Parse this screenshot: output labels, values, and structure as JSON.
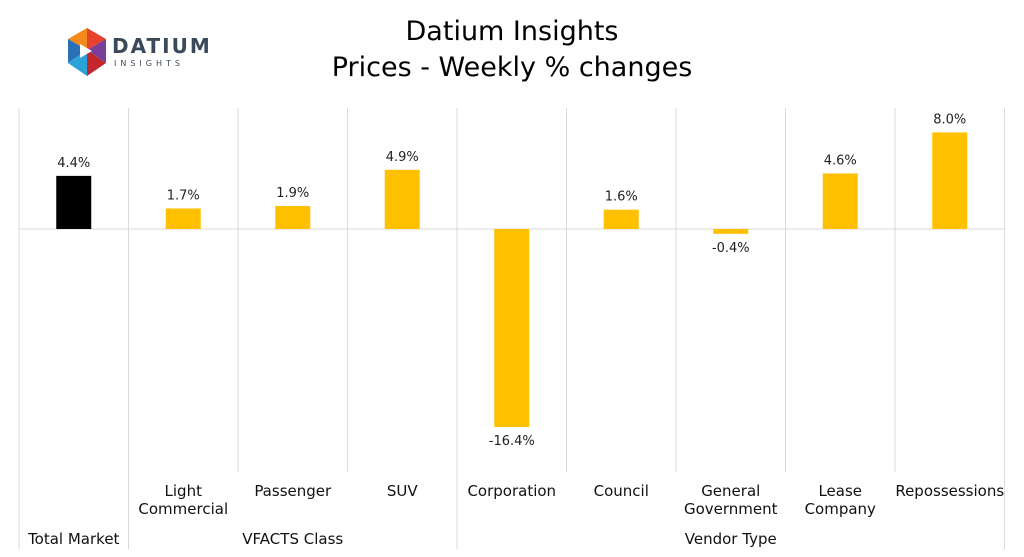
{
  "logo": {
    "word": "DATIUM",
    "sub": "INSIGHTS"
  },
  "chart_data": {
    "type": "bar",
    "title": "Datium Insights",
    "subtitle": "Prices - Weekly % changes",
    "categories": [
      [
        "Total Market"
      ],
      [
        "Light",
        "Commercial"
      ],
      [
        "Passenger"
      ],
      [
        "SUV"
      ],
      [
        "Corporation"
      ],
      [
        "Council"
      ],
      [
        "General",
        "Government"
      ],
      [
        "Lease",
        "Company"
      ],
      [
        "Repossessions"
      ]
    ],
    "values": [
      4.4,
      1.7,
      1.9,
      4.9,
      -16.4,
      1.6,
      -0.4,
      4.6,
      8.0
    ],
    "value_labels": [
      "4.4%",
      "1.7%",
      "1.9%",
      "4.9%",
      "-16.4%",
      "1.6%",
      "-0.4%",
      "4.6%",
      "8.0%"
    ],
    "groups": [
      {
        "label": "",
        "start": 0,
        "end": 0
      },
      {
        "label": "VFACTS Class",
        "start": 1,
        "end": 3
      },
      {
        "label": "Vendor Type",
        "start": 4,
        "end": 8
      }
    ],
    "first_group_label": "Total Market",
    "colors": {
      "highlight": "#000000",
      "bar": "#FFC000",
      "grid": "#d9d9d9"
    },
    "ylim": [
      -16.4,
      8.0
    ]
  }
}
